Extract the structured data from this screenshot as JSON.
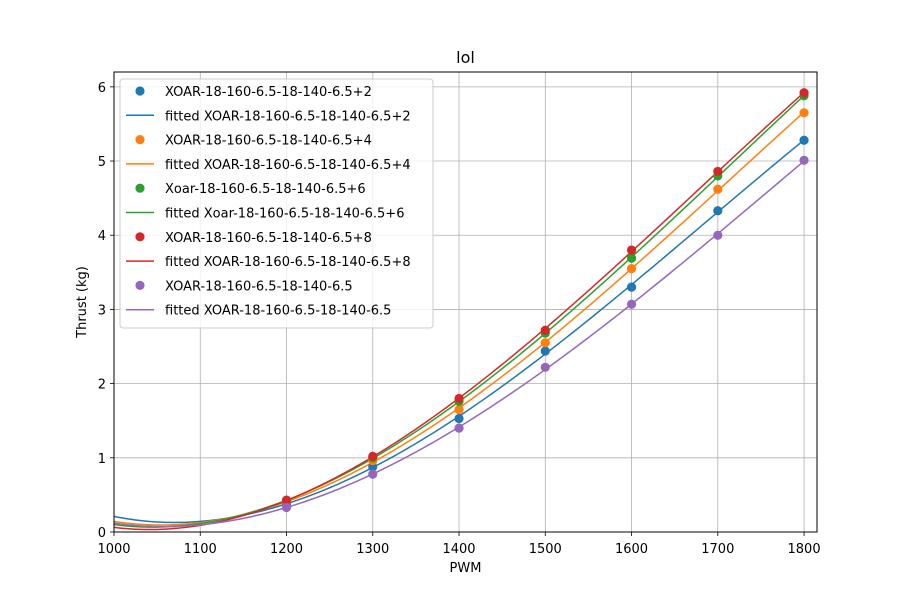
{
  "chart_data": {
    "type": "scatter",
    "title": "lol",
    "xlabel": "PWM",
    "ylabel": "Thrust (kg)",
    "xlim": [
      1000,
      1815
    ],
    "ylim": [
      0,
      6.2
    ],
    "xticks": [
      1000,
      1100,
      1200,
      1300,
      1400,
      1500,
      1600,
      1700,
      1800
    ],
    "yticks": [
      0,
      1,
      2,
      3,
      4,
      5,
      6
    ],
    "grid": true,
    "legend_position": "top-left",
    "x": [
      1200,
      1300,
      1400,
      1500,
      1600,
      1700,
      1800
    ],
    "series": [
      {
        "name": "XOAR-18-160-6.5-18-140-6.5+2",
        "fit_name": "fitted XOAR-18-160-6.5-18-140-6.5+2",
        "color": "#1f77b4",
        "values": [
          0.38,
          0.88,
          1.53,
          2.44,
          3.3,
          4.33,
          5.28
        ],
        "fit_start": 0.21
      },
      {
        "name": "XOAR-18-160-6.5-18-140-6.5+4",
        "fit_name": "fitted XOAR-18-160-6.5-18-140-6.5+4",
        "color": "#ff7f0e",
        "values": [
          0.41,
          0.96,
          1.65,
          2.55,
          3.55,
          4.62,
          5.65
        ],
        "fit_start": 0.14
      },
      {
        "name": "Xoar-18-160-6.5-18-140-6.5+6",
        "fit_name": "fitted Xoar-18-160-6.5-18-140-6.5+6",
        "color": "#2ca02c",
        "values": [
          0.42,
          1.0,
          1.76,
          2.68,
          3.69,
          4.8,
          5.88
        ],
        "fit_start": 0.1
      },
      {
        "name": "XOAR-18-160-6.5-18-140-6.5+8",
        "fit_name": "fitted XOAR-18-160-6.5-18-140-6.5+8",
        "color": "#d62728",
        "values": [
          0.43,
          1.02,
          1.8,
          2.72,
          3.8,
          4.86,
          5.92
        ],
        "fit_start": 0.06
      },
      {
        "name": "XOAR-18-160-6.5-18-140-6.5",
        "fit_name": "fitted XOAR-18-160-6.5-18-140-6.5",
        "color": "#9467bd",
        "values": [
          0.33,
          0.78,
          1.4,
          2.22,
          3.07,
          4.0,
          5.01
        ],
        "fit_start": 0.12
      }
    ]
  }
}
